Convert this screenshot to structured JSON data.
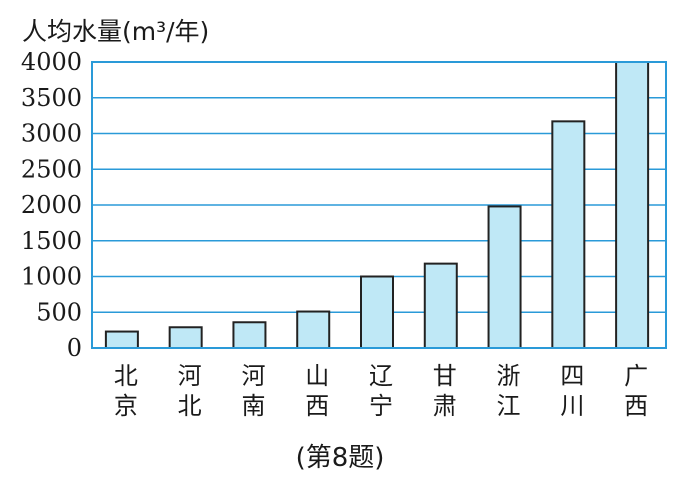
{
  "chart_data": {
    "type": "bar",
    "ylabel": "人均水量(m³/年)",
    "xlabel": "",
    "caption": "(第8题)",
    "categories": [
      [
        "北",
        "京"
      ],
      [
        "河",
        "北"
      ],
      [
        "河",
        "南"
      ],
      [
        "山",
        "西"
      ],
      [
        "辽",
        "宁"
      ],
      [
        "甘",
        "肃"
      ],
      [
        "浙",
        "江"
      ],
      [
        "四",
        "川"
      ],
      [
        "广",
        "西"
      ]
    ],
    "values": [
      230,
      290,
      360,
      510,
      1000,
      1180,
      1980,
      3170,
      4000
    ],
    "ylim": [
      0,
      4000
    ],
    "yticks": [
      0,
      500,
      1000,
      1500,
      2000,
      2500,
      3000,
      3500,
      4000
    ],
    "grid": true,
    "colors": {
      "bar_fill": "#bfe8f6",
      "bar_stroke": "#222222",
      "grid": "#2a9ad8"
    }
  }
}
